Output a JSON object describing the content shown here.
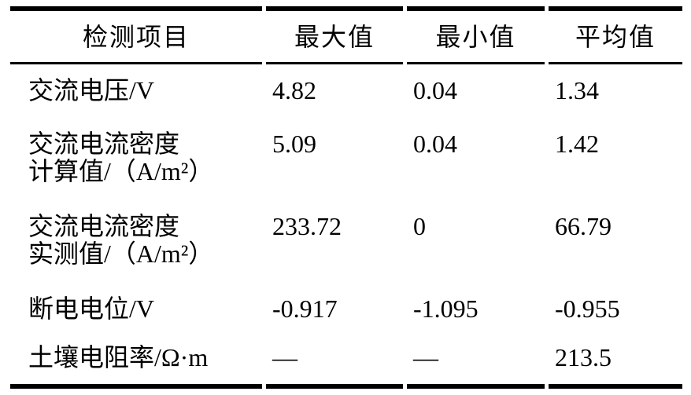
{
  "table": {
    "columns": {
      "item": "检测项目",
      "max": "最大值",
      "min": "最小值",
      "avg": "平均值"
    },
    "rows": [
      {
        "item": "交流电压/V",
        "max": "4.82",
        "min": "0.04",
        "avg": "1.34"
      },
      {
        "item": "交流电流密度\n计算值/（A/m²）",
        "max": "5.09",
        "min": "0.04",
        "avg": "1.42"
      },
      {
        "item": "交流电流密度\n实测值/（A/m²）",
        "max": "233.72",
        "min": "0",
        "avg": "66.79"
      },
      {
        "item": "断电电位/V",
        "max": "-0.917",
        "min": "-1.095",
        "avg": "-0.955"
      },
      {
        "item": "土壤电阻率/Ω·m",
        "max": "—",
        "min": "—",
        "avg": "213.5"
      }
    ],
    "colors": {
      "text": "#000000",
      "background": "#ffffff",
      "border": "#000000"
    }
  }
}
